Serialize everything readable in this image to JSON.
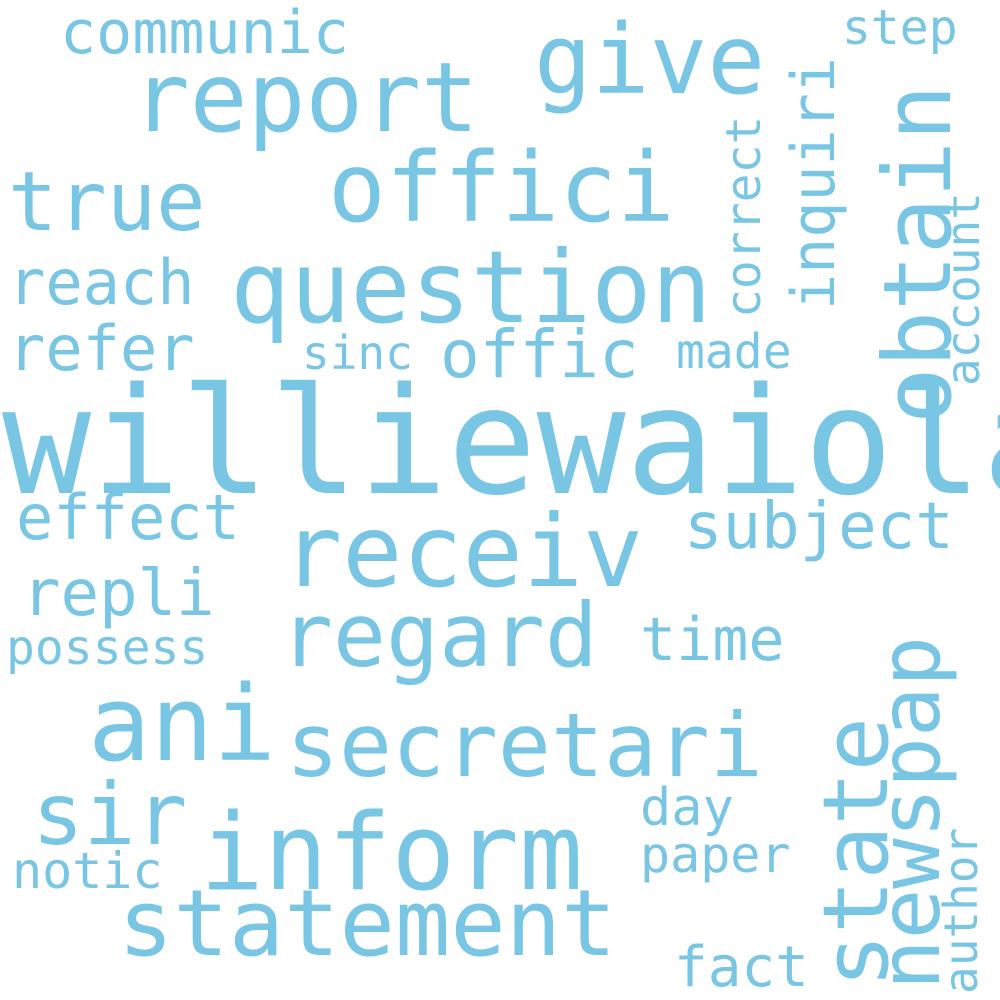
{
  "colors": {
    "background": "#ffffff",
    "word": "#79c6e4"
  },
  "words": {
    "williewaiola": "williewaiola",
    "question": "question",
    "receiv": "receiv",
    "inform": "inform",
    "statement": "statement",
    "state": "state",
    "ani": "ani",
    "report": "report",
    "offici": "offici",
    "secretari": "secretari",
    "give": "give",
    "true": "true",
    "regard": "regard",
    "obtain": "obtain",
    "newspap": "newspap",
    "sir": "sir",
    "offic": "offic",
    "subject": "subject",
    "communic": "communic",
    "inquiri": "inquiri",
    "reach": "reach",
    "refer": "refer",
    "effect": "effect",
    "repli": "repli",
    "time": "time",
    "possess": "possess",
    "day": "day",
    "paper": "paper",
    "notic": "notic",
    "fact": "fact",
    "made": "made",
    "sinc": "sinc",
    "step": "step",
    "correct": "correct",
    "account": "account",
    "author": "author"
  }
}
